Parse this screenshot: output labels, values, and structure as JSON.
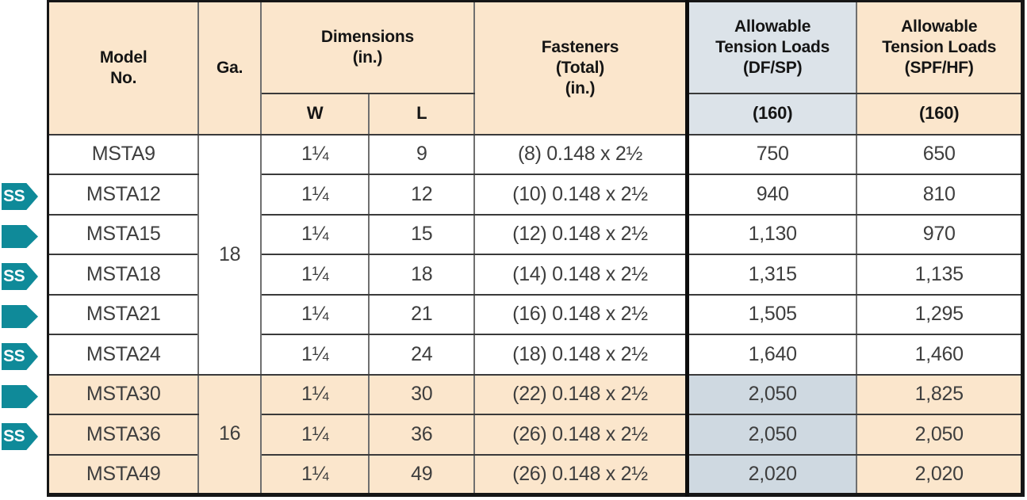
{
  "colors": {
    "tan": "#FBE6CC",
    "header_blue": "#DCE3E9",
    "body_blue": "#CFD9E1",
    "badge_teal": "#0F8A99",
    "grid_dark": "#3A3A3A",
    "grid_gray": "#6F6F6F"
  },
  "header": {
    "model_no": "Model\nNo.",
    "ga": "Ga.",
    "dimensions": "Dimensions\n(in.)",
    "w": "W",
    "l": "L",
    "fasteners": "Fasteners\n(Total)\n(in.)",
    "allowable_dfsp": "Allowable\nTension Loads\n(DF/SP)",
    "allowable_spfhf": "Allowable\nTension Loads\n(SPF/HF)",
    "dfsp_160": "(160)",
    "spfhf_160": "(160)"
  },
  "badges": {
    "ss_label": "SS",
    "items": [
      {
        "row": "MSTA12",
        "type": "ss"
      },
      {
        "row": "MSTA15",
        "type": "arrow"
      },
      {
        "row": "MSTA18",
        "type": "ss"
      },
      {
        "row": "MSTA21",
        "type": "arrow"
      },
      {
        "row": "MSTA24",
        "type": "ss"
      },
      {
        "row": "MSTA30",
        "type": "arrow"
      },
      {
        "row": "MSTA36",
        "type": "ss"
      }
    ]
  },
  "rows": [
    {
      "model": "MSTA9",
      "ga": "18",
      "w": "1¼",
      "l": "9",
      "fasteners": "(8) 0.148 x 2½",
      "dfsp": "750",
      "spfhf": "650"
    },
    {
      "model": "MSTA12",
      "w": "1¼",
      "l": "12",
      "fasteners": "(10) 0.148 x 2½",
      "dfsp": "940",
      "spfhf": "810"
    },
    {
      "model": "MSTA15",
      "w": "1¼",
      "l": "15",
      "fasteners": "(12) 0.148 x 2½",
      "dfsp": "1,130",
      "spfhf": "970"
    },
    {
      "model": "MSTA18",
      "w": "1¼",
      "l": "18",
      "fasteners": "(14) 0.148 x 2½",
      "dfsp": "1,315",
      "spfhf": "1,135"
    },
    {
      "model": "MSTA21",
      "w": "1¼",
      "l": "21",
      "fasteners": "(16) 0.148 x 2½",
      "dfsp": "1,505",
      "spfhf": "1,295"
    },
    {
      "model": "MSTA24",
      "w": "1¼",
      "l": "24",
      "fasteners": "(18) 0.148 x 2½",
      "dfsp": "1,640",
      "spfhf": "1,460"
    },
    {
      "model": "MSTA30",
      "ga": "16",
      "w": "1¼",
      "l": "30",
      "fasteners": "(22) 0.148 x 2½",
      "dfsp": "2,050",
      "spfhf": "1,825"
    },
    {
      "model": "MSTA36",
      "w": "1¼",
      "l": "36",
      "fasteners": "(26) 0.148 x 2½",
      "dfsp": "2,050",
      "spfhf": "2,050"
    },
    {
      "model": "MSTA49",
      "w": "1¼",
      "l": "49",
      "fasteners": "(26) 0.148 x 2½",
      "dfsp": "2,020",
      "spfhf": "2,020"
    }
  ]
}
